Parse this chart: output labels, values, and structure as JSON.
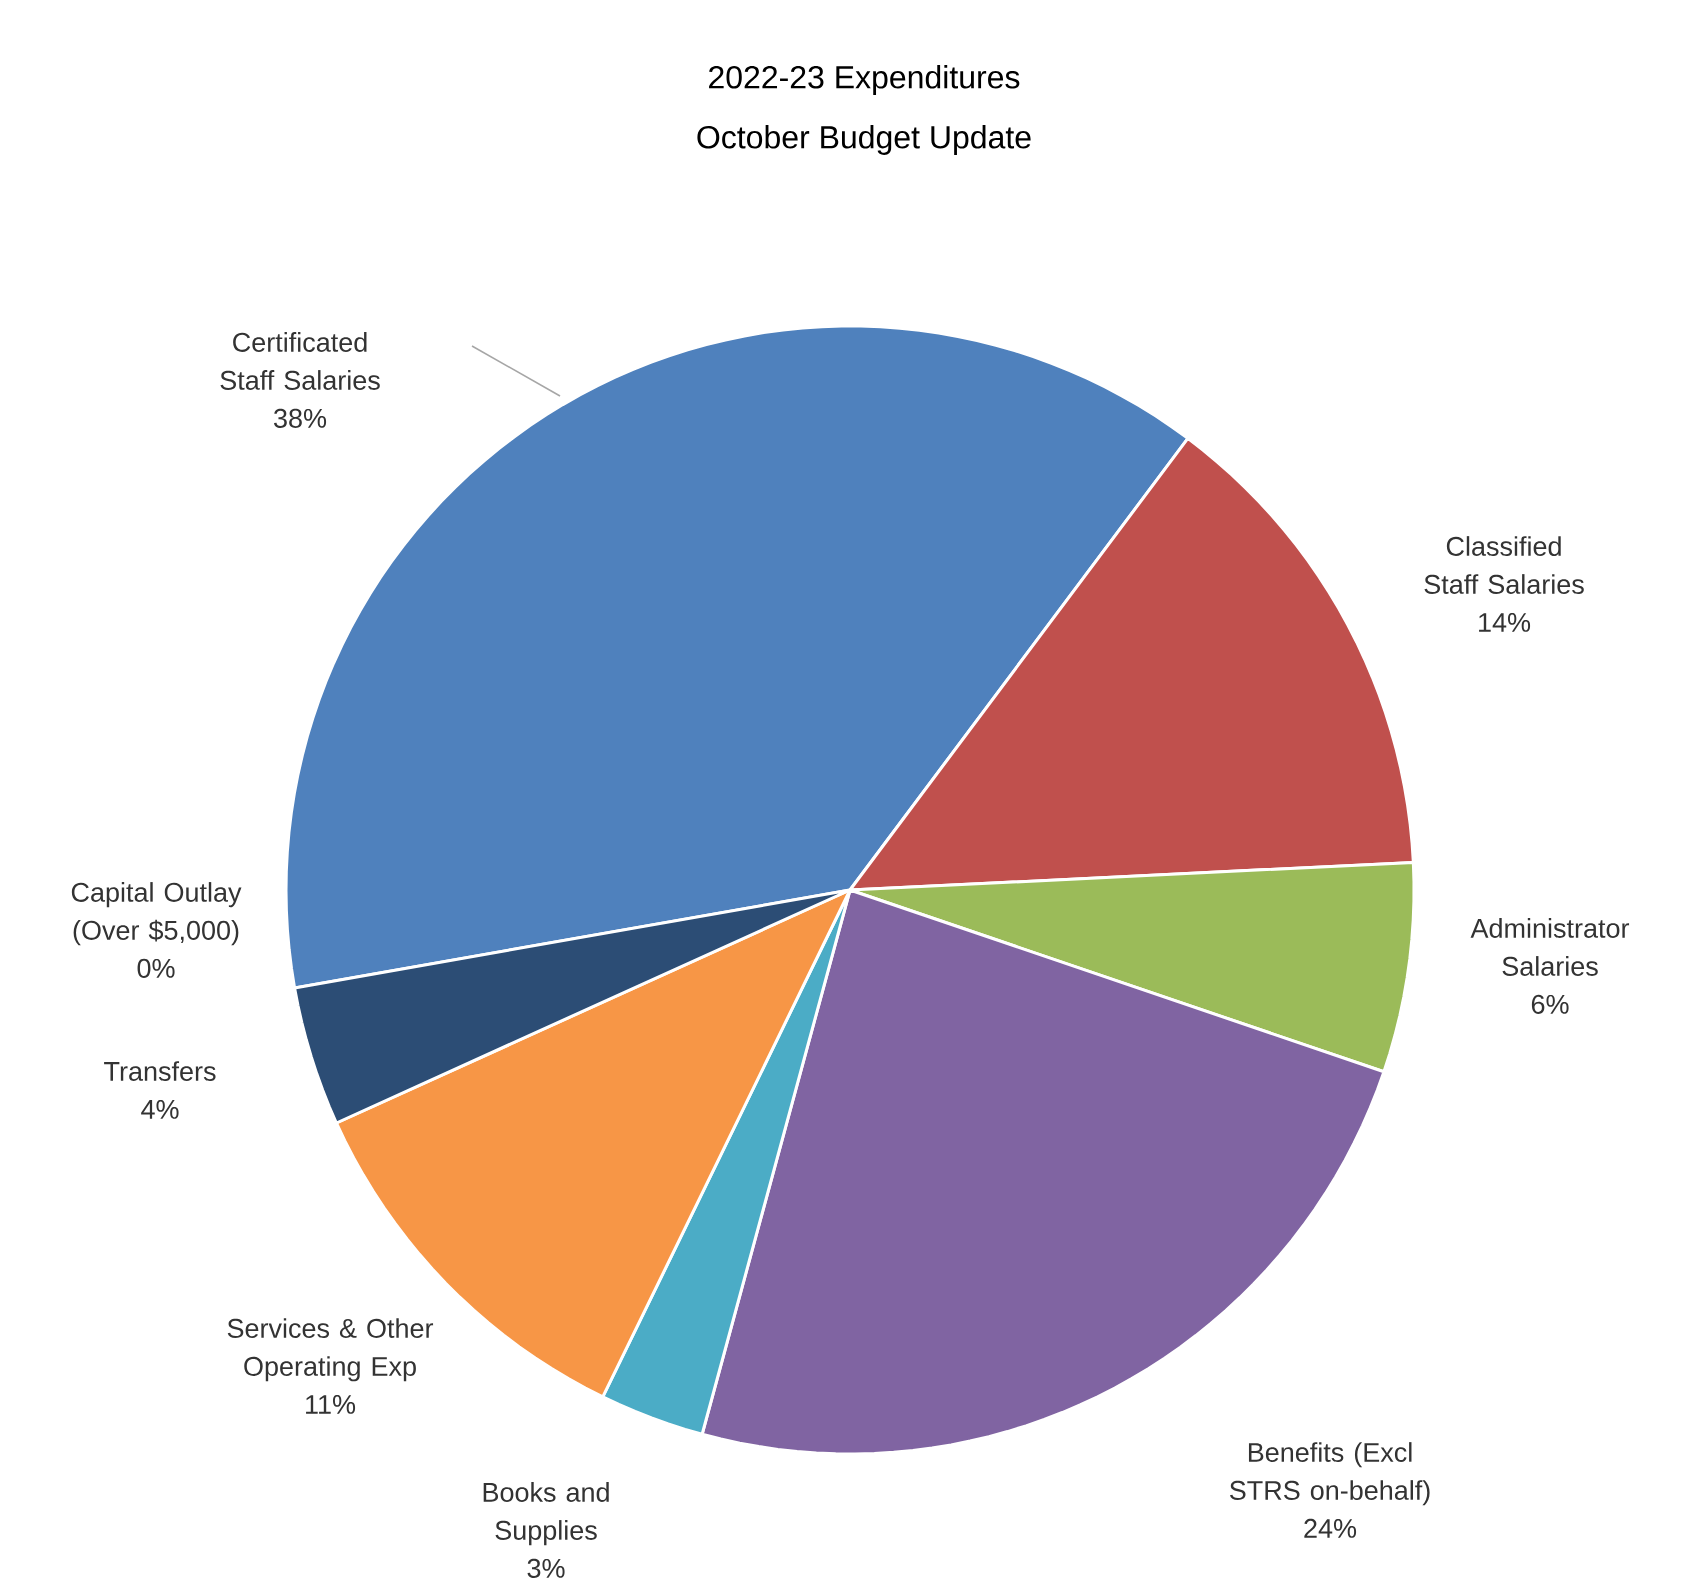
{
  "chart_data": {
    "type": "pie",
    "title": "2022-23 Expenditures",
    "subtitle": "October Budget Update",
    "categories": [
      "Certificated Staff Salaries",
      "Classified Staff Salaries",
      "Administrator Salaries",
      "Benefits (Excl STRS on-behalf)",
      "Books and Supplies",
      "Services & Other Operating Exp",
      "Transfers",
      "Capital Outlay (Over $5,000)"
    ],
    "values": [
      38,
      14,
      6,
      24,
      3,
      11,
      4,
      0
    ],
    "value_labels": [
      "38%",
      "14%",
      "6%",
      "24%",
      "3%",
      "11%",
      "4%",
      "0%"
    ],
    "colors": [
      "#4f81bd",
      "#c0504d",
      "#9bbb59",
      "#8064a2",
      "#4bacc6",
      "#f79646",
      "#2c4d75",
      "#772c2a"
    ]
  }
}
